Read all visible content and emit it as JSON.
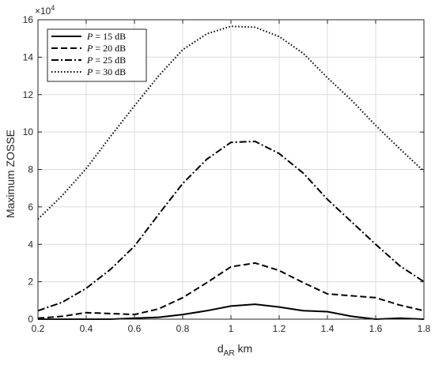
{
  "chart_data": {
    "type": "line",
    "title": "",
    "xlabel_main": "d",
    "xlabel_sub": "AR",
    "xlabel_unit": " km",
    "ylabel": "Maximum ZOSSE",
    "y_exponent_base": "×10",
    "y_exponent_power": "4",
    "xlim": [
      0.2,
      1.8
    ],
    "ylim": [
      0,
      16
    ],
    "x_ticks": [
      "0.2",
      "0.4",
      "0.6",
      "0.8",
      "1",
      "1.2",
      "1.4",
      "1.6",
      "1.8"
    ],
    "y_ticks": [
      "0",
      "2",
      "4",
      "6",
      "8",
      "10",
      "12",
      "14",
      "16"
    ],
    "grid": true,
    "legend_position": "top-left",
    "x": [
      0.2,
      0.3,
      0.4,
      0.5,
      0.6,
      0.7,
      0.8,
      0.9,
      1.0,
      1.1,
      1.2,
      1.3,
      1.4,
      1.5,
      1.6,
      1.7,
      1.8
    ],
    "series": [
      {
        "name_var": "P",
        "name_rest": " = 15 dB",
        "style": "solid",
        "values": [
          0.0,
          0.0,
          0.0,
          0.0,
          0.05,
          0.1,
          0.25,
          0.45,
          0.7,
          0.8,
          0.65,
          0.45,
          0.4,
          0.15,
          0.0,
          0.05,
          0.0
        ]
      },
      {
        "name_var": "P",
        "name_rest": " = 20 dB",
        "style": "dashed",
        "values": [
          0.05,
          0.15,
          0.35,
          0.3,
          0.25,
          0.55,
          1.15,
          1.95,
          2.8,
          3.0,
          2.6,
          1.95,
          1.35,
          1.25,
          1.15,
          0.75,
          0.45
        ]
      },
      {
        "name_var": "P",
        "name_rest": " = 25 dB",
        "style": "dashdot",
        "values": [
          0.45,
          0.9,
          1.65,
          2.65,
          3.9,
          5.6,
          7.25,
          8.55,
          9.45,
          9.5,
          8.85,
          7.8,
          6.4,
          5.2,
          4.0,
          2.85,
          2.0
        ]
      },
      {
        "name_var": "P",
        "name_rest": " = 30 dB",
        "style": "dotted",
        "values": [
          5.35,
          6.6,
          8.05,
          9.75,
          11.4,
          13.0,
          14.4,
          15.25,
          15.65,
          15.6,
          15.1,
          14.2,
          12.9,
          11.7,
          10.35,
          9.1,
          7.9
        ]
      }
    ]
  }
}
